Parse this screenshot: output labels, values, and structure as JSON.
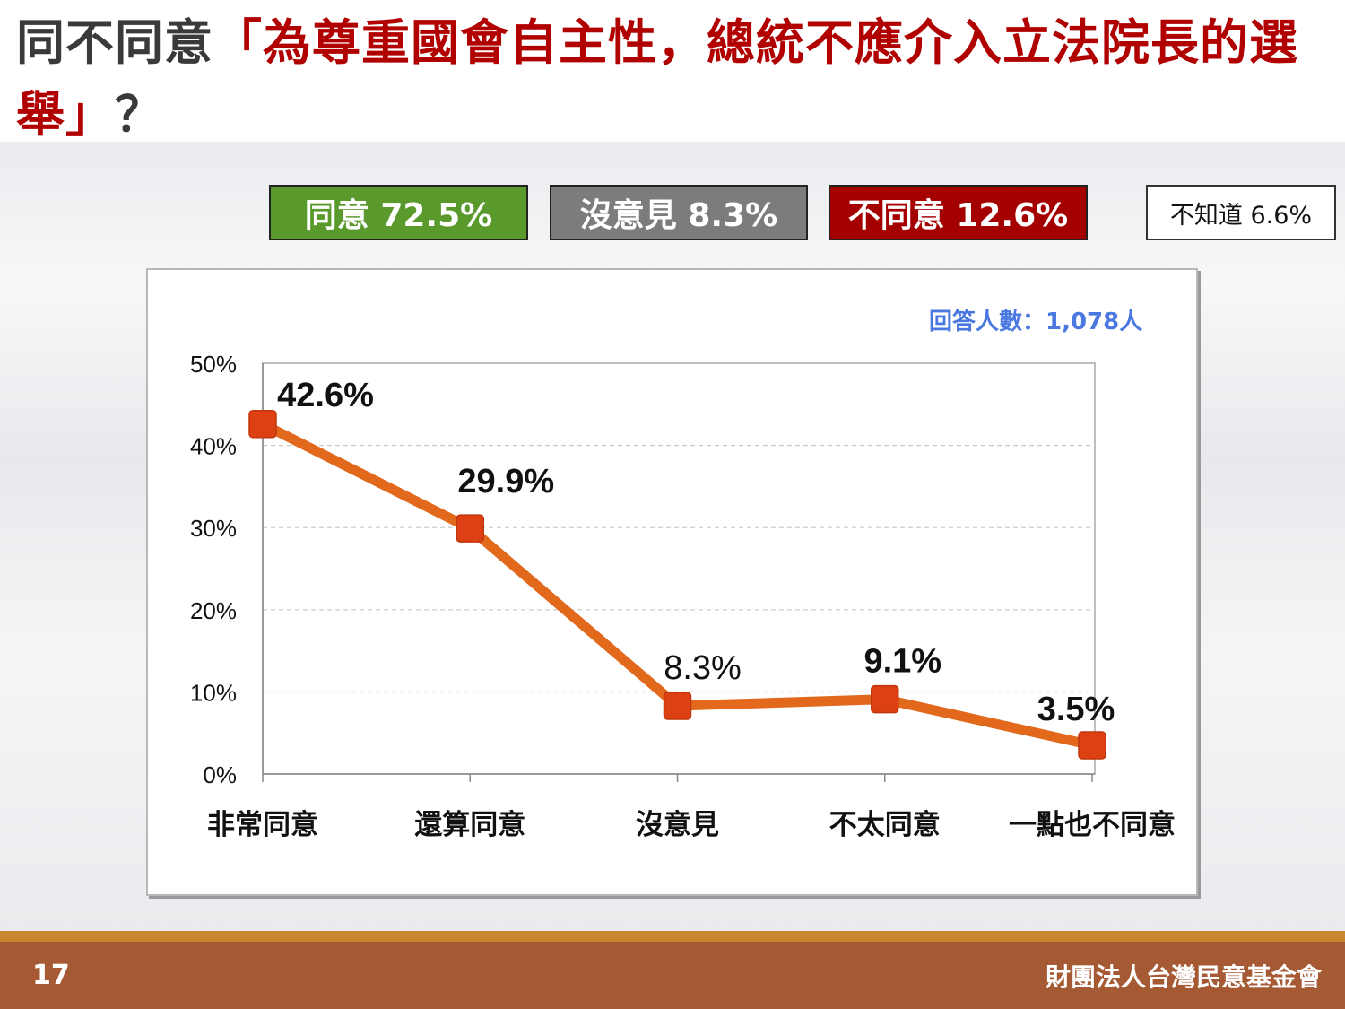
{
  "slide": {
    "title_prefix": "同不同意",
    "title_quote": "「為尊重國會自主性，總統不應介入立法院長的選舉」",
    "title_suffix": "？",
    "page_number": "17",
    "organization": "財團法人台灣民意基金會"
  },
  "summary": {
    "agree": "同意 72.5%",
    "no_opinion": "沒意見 8.3%",
    "disagree": "不同意 12.6%",
    "dont_know": "不知道 6.6%"
  },
  "respondents": "回答人數：1,078人",
  "colors": {
    "agree": "#5a9a2c",
    "no_opinion": "#7c7c7c",
    "disagree": "#a40000",
    "line": "#e2681c",
    "marker": "#dd4013",
    "title_red": "#b00000",
    "respondents": "#4a78e0"
  },
  "chart_data": {
    "type": "line",
    "categories": [
      "非常同意",
      "還算同意",
      "沒意見",
      "不太同意",
      "一點也不同意"
    ],
    "values": [
      42.6,
      29.9,
      8.3,
      9.1,
      3.5
    ],
    "data_labels": [
      "42.6%",
      "29.9%",
      "8.3%",
      "9.1%",
      "3.5%"
    ],
    "label_bold": [
      true,
      true,
      false,
      true,
      true
    ],
    "y_ticks": [
      "0%",
      "10%",
      "20%",
      "30%",
      "40%",
      "50%"
    ],
    "ylim": [
      0,
      50
    ],
    "grid": true,
    "xlabel": "",
    "ylabel": ""
  }
}
